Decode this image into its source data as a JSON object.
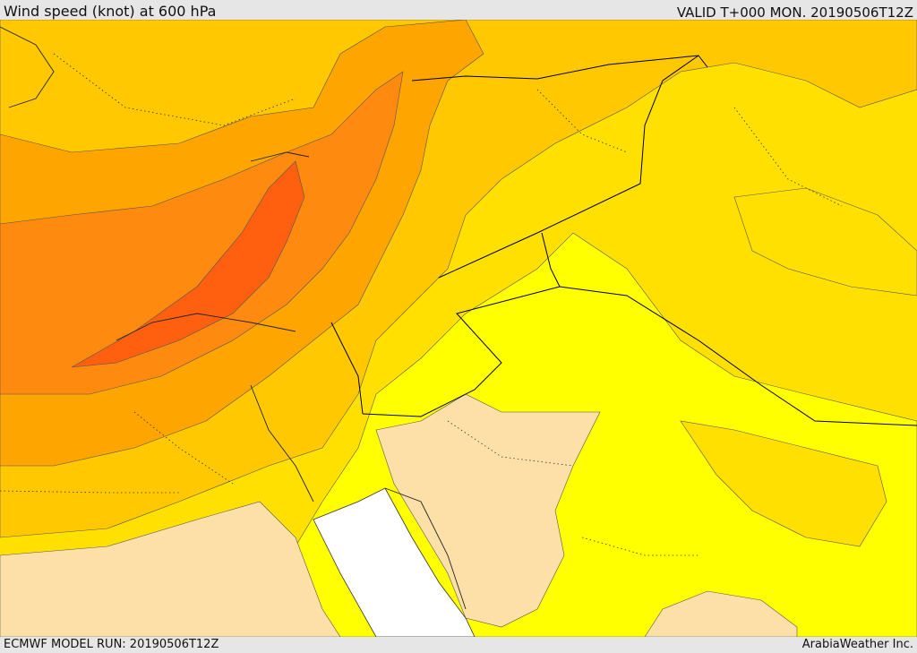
{
  "header": {
    "title": "Wind speed (knot) at 600 hPa",
    "valid": "VALID T+000 MON. 20190506T12Z"
  },
  "footer": {
    "model_run": "ECMWF MODEL RUN: 20190506T12Z",
    "credit": "ArabiaWeather Inc."
  },
  "colors": {
    "band_0": "#fde0a8",
    "band_1": "#ffff00",
    "band_2": "#ffe000",
    "band_3": "#ffc800",
    "band_4": "#ffa500",
    "band_5": "#ff8a10",
    "band_6": "#ff6010",
    "sea": "#ffffff",
    "border": "#000000"
  }
}
